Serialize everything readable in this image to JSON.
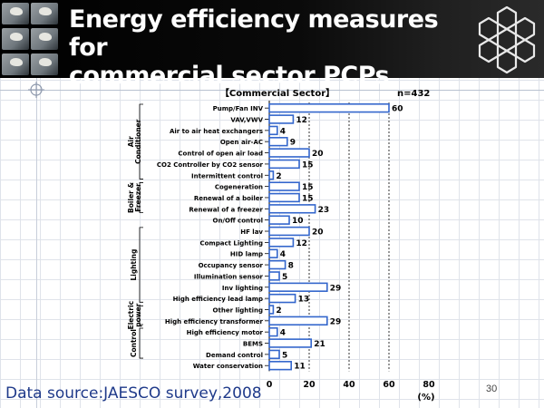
{
  "slide": {
    "title_line1": "Energy efficiency measures for",
    "title_line2": "commercial sector PCPs",
    "source": "Data source:JAESCO survey,2008",
    "page_number": "30"
  },
  "chart_data": {
    "type": "bar",
    "orientation": "horizontal",
    "title": "【Commercial Sector】",
    "n_label": "n=432",
    "unit_label": "(%)",
    "xlim": [
      0,
      80
    ],
    "xticks": [
      0,
      20,
      40,
      60,
      80
    ],
    "gridlines": "vertical dashed at 20, 40, 60",
    "bar_color": "#3366cc",
    "groups": [
      {
        "label": "Air Conditioner",
        "start": 0,
        "end": 6
      },
      {
        "label": "Boiler & Freezer",
        "start": 7,
        "end": 9
      },
      {
        "label": "Lighting",
        "start": 11,
        "end": 17
      },
      {
        "label": "Electric power",
        "start": 18,
        "end": 19
      },
      {
        "label": "Control",
        "start": 20,
        "end": 22
      }
    ],
    "categories": [
      "Pump/Fan INV",
      "VAV,VWV",
      "Air to air heat exchangers",
      "Open air-AC",
      "Control of open air load",
      "CO2 Controller by CO2 sensor",
      "Intermittent control",
      "Cogeneration",
      "Renewal of a boiler",
      "Renewal of a freezer",
      "On/Off control",
      "HF lav",
      "Compact Lighting",
      "HID lamp",
      "Occupancy sensor",
      "Illumination sensor",
      "Inv lighting",
      "High efficiency lead lamp",
      "Other lighting",
      "High efficiency transformer",
      "High efficiency motor",
      "BEMS",
      "Demand control",
      "Water conservation"
    ],
    "values": [
      60,
      12,
      4,
      9,
      20,
      15,
      2,
      15,
      15,
      23,
      10,
      20,
      12,
      4,
      8,
      5,
      29,
      13,
      2,
      29,
      4,
      21,
      5,
      11
    ]
  }
}
